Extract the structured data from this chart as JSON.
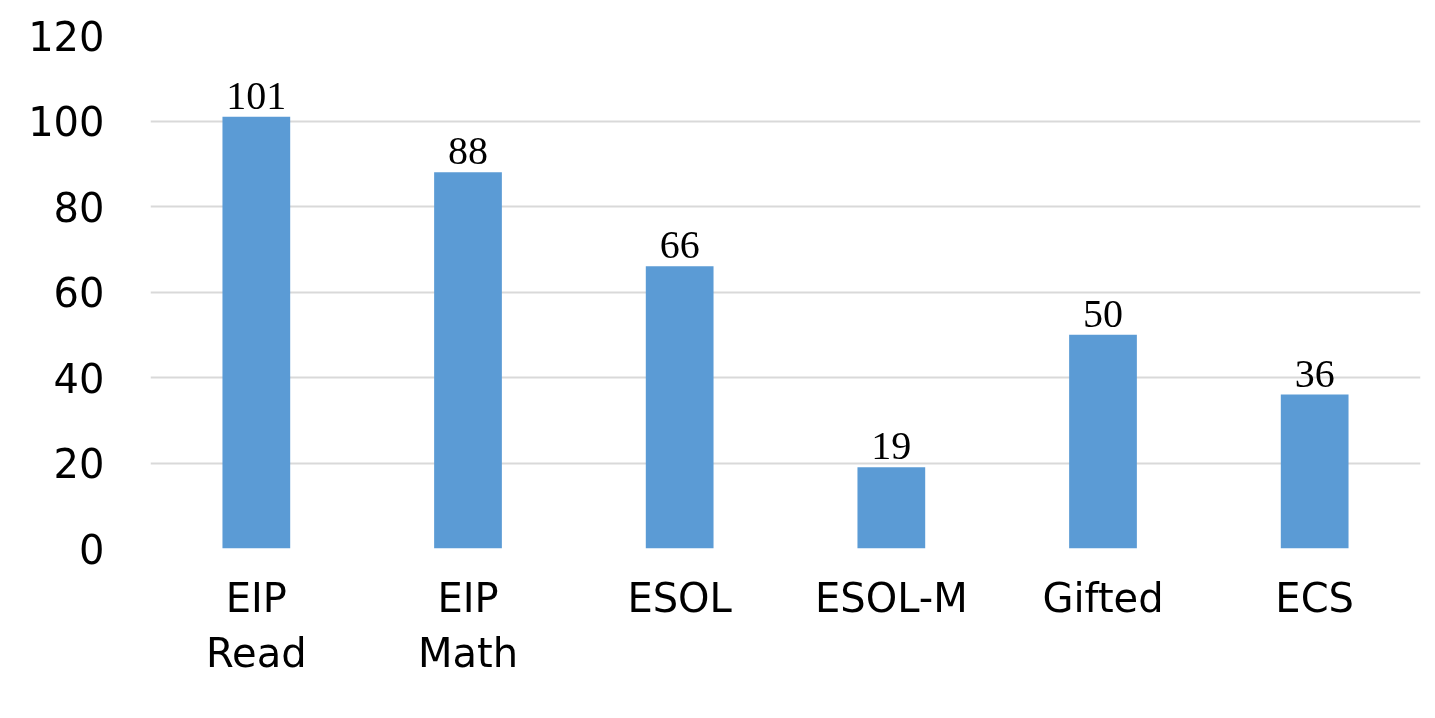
{
  "chart_data": {
    "type": "bar",
    "categories": [
      "EIP Read",
      "EIP Math",
      "ESOL",
      "ESOL-M",
      "Gifted",
      "ECS"
    ],
    "values": [
      101,
      88,
      66,
      19,
      50,
      36
    ],
    "color": "#5b9bd5",
    "ylim": [
      0,
      120
    ],
    "yticks": [
      0,
      20,
      40,
      60,
      80,
      100,
      120
    ],
    "grid": "y",
    "data_labels": true
  }
}
